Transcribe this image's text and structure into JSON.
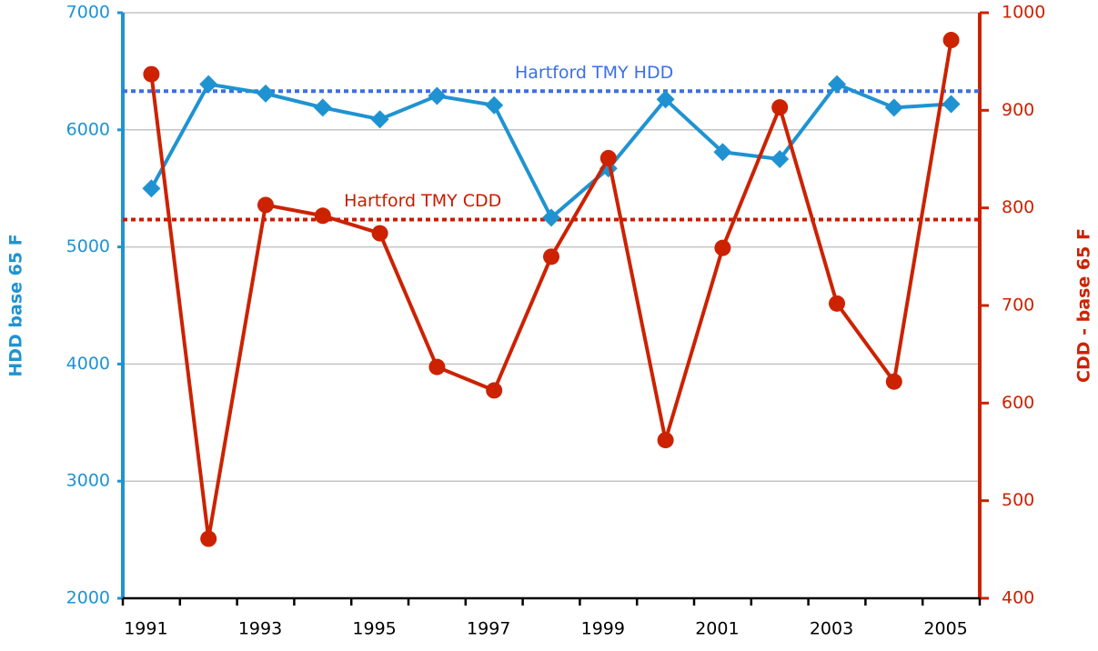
{
  "chart_data": {
    "type": "line",
    "categories": [
      "1991",
      null,
      "1993",
      null,
      "1995",
      null,
      "1997",
      null,
      "1999",
      null,
      "2001",
      null,
      "2003",
      null,
      "2005"
    ],
    "series": [
      {
        "name": "HDD",
        "color": "#1f93d1",
        "marker": "diamond",
        "axis": "y",
        "values": [
          5500,
          6390,
          6310,
          6190,
          6090,
          6290,
          6210,
          5250,
          5670,
          6260,
          5810,
          5750,
          6390,
          6190,
          6220
        ]
      },
      {
        "name": "CDD",
        "color": "#cc2200",
        "marker": "circle",
        "axis": "y2",
        "values": [
          937,
          461,
          803,
          792,
          774,
          637,
          613,
          750,
          851,
          562,
          759,
          903,
          702,
          622,
          972
        ]
      }
    ],
    "reference_lines": [
      {
        "label": "Hartford TMY HDD",
        "value": 6330,
        "color": "#3a6fe6",
        "axis": "y"
      },
      {
        "label": "Hartford TMY CDD",
        "value": 788,
        "color": "#cc1a00",
        "axis": "y2"
      }
    ],
    "ylabel": "HDD base 65 F",
    "y2label": "CDD - base 65 F",
    "ylim": [
      2000,
      7000
    ],
    "yticks": [
      2000,
      3000,
      4000,
      5000,
      6000,
      7000
    ],
    "y2lim": [
      400,
      1000
    ],
    "y2ticks": [
      400,
      500,
      600,
      700,
      800,
      900,
      1000
    ],
    "grid": true,
    "y_color": "#1f93d1",
    "y2_color": "#cc2200"
  }
}
